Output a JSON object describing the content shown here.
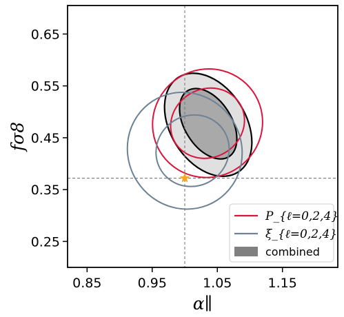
{
  "chart_data": {
    "type": "contour",
    "xlabel": "α∥",
    "ylabel": "fσ8",
    "xlim": [
      0.82,
      1.235
    ],
    "ylim": [
      0.2,
      0.705
    ],
    "x_ticks": [
      "0.85",
      "0.95",
      "1.05",
      "1.15"
    ],
    "y_ticks": [
      "0.25",
      "0.35",
      "0.45",
      "0.55",
      "0.65"
    ],
    "grid": false,
    "reference": {
      "x": 1.0,
      "y": 0.372,
      "marker": "star",
      "color": "#f5a623",
      "line_color": "#7a7a7a"
    },
    "legend_position": "lower-right",
    "series": [
      {
        "name": "P_{ℓ=0,2,4}",
        "color": "#dc143c",
        "contours": [
          {
            "level": "1σ",
            "center": [
              1.035,
              0.478
            ],
            "semi_axes": [
              0.058,
              0.066
            ],
            "angle_deg": 30
          },
          {
            "level": "2σ",
            "center": [
              1.035,
              0.478
            ],
            "semi_axes": [
              0.085,
              0.104
            ],
            "angle_deg": 30
          }
        ]
      },
      {
        "name": "ξ_{ℓ=0,2,4}",
        "color": "#6c8296",
        "contours": [
          {
            "level": "1σ",
            "center": [
              1.012,
              0.425
            ],
            "semi_axes": [
              0.057,
              0.068
            ],
            "angle_deg": 33
          },
          {
            "level": "2σ",
            "center": [
              1.0,
              0.425
            ],
            "semi_axes": [
              0.087,
              0.114
            ],
            "angle_deg": 33
          }
        ]
      },
      {
        "name": "combined",
        "color": "#808080",
        "contours": [
          {
            "level": "1σ",
            "center": [
              1.036,
              0.477
            ],
            "semi_axes": [
              0.036,
              0.075
            ],
            "angle_deg": 32
          },
          {
            "level": "2σ",
            "center": [
              1.036,
              0.475
            ],
            "semi_axes": [
              0.058,
              0.108
            ],
            "angle_deg": 32
          }
        ]
      }
    ]
  }
}
